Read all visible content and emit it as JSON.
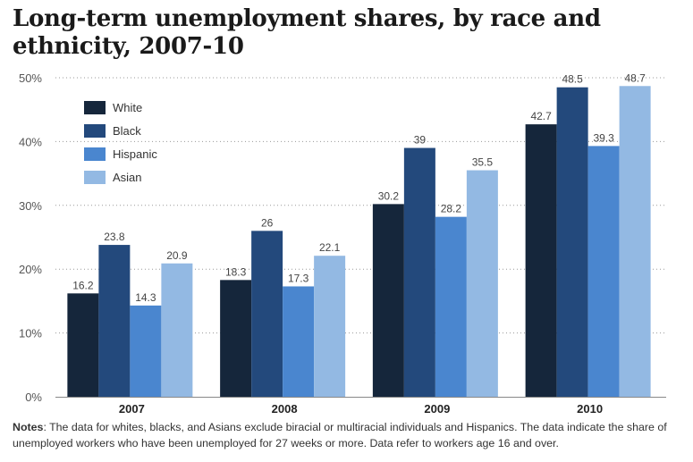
{
  "title": "Long-term unemployment shares, by race and ethnicity, 2007-10",
  "notes": {
    "label": "Notes",
    "text": ": The data for whites, blacks, and Asians exclude biracial or multiracial individuals and Hispanics. The data indicate the share of unemployed workers who have been unemployed for 27 weeks or more. Data refer to workers age 16 and over."
  },
  "chart_data": {
    "type": "bar",
    "categories": [
      "2007",
      "2008",
      "2009",
      "2010"
    ],
    "series": [
      {
        "name": "White",
        "color": "#15263b",
        "values": [
          16.2,
          18.3,
          30.2,
          42.7
        ]
      },
      {
        "name": "Black",
        "color": "#23497c",
        "values": [
          23.8,
          26,
          39,
          48.5
        ]
      },
      {
        "name": "Hispanic",
        "color": "#4a86cf",
        "values": [
          14.3,
          17.3,
          28.2,
          39.3
        ]
      },
      {
        "name": "Asian",
        "color": "#93b9e3",
        "values": [
          20.9,
          22.1,
          35.5,
          48.7
        ]
      }
    ],
    "ylim": [
      0,
      50
    ],
    "yticks": [
      "0%",
      "10%",
      "20%",
      "30%",
      "40%",
      "50%"
    ],
    "grid": true,
    "legend": "top-left"
  }
}
